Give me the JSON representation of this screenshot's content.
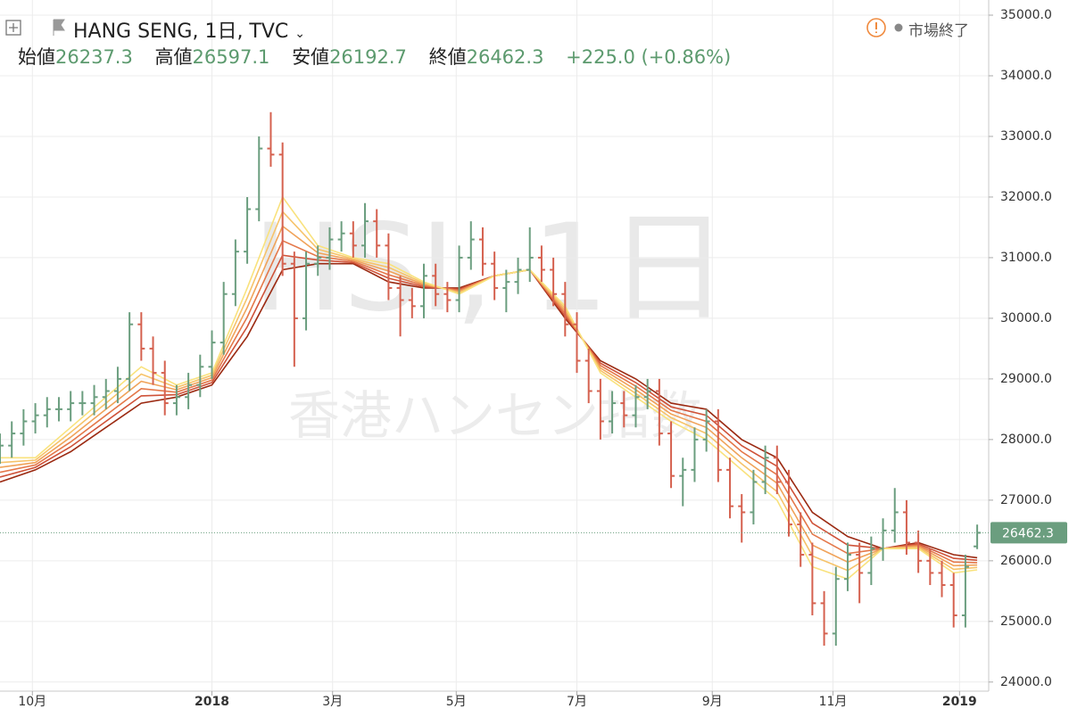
{
  "header": {
    "symbol": "HANG SENG, 1日, TVC",
    "status": "市場終了",
    "legend": [
      {
        "label": "始値",
        "value": 26237.3
      },
      {
        "label": "高値",
        "value": 26597.1
      },
      {
        "label": "安値",
        "value": 26192.7
      },
      {
        "label": "終値",
        "value": 26462.3
      }
    ],
    "change": "+225.0 (+0.86%)"
  },
  "watermark": {
    "line1": "HSI, 1日",
    "line2": "香港ハンセン指数"
  },
  "chart_data": {
    "type": "ohlc",
    "up_color": "#6b9e7f",
    "down_color": "#d5614f",
    "grid": true,
    "xlim": [
      0,
      335
    ],
    "ylim": [
      23850,
      35250
    ],
    "xticks": [
      {
        "value": 11,
        "label": "10月"
      },
      {
        "value": 72,
        "label": "2018"
      },
      {
        "value": 113,
        "label": "3月"
      },
      {
        "value": 155,
        "label": "5月"
      },
      {
        "value": 196,
        "label": "7月"
      },
      {
        "value": 242,
        "label": "9月"
      },
      {
        "value": 283,
        "label": "11月"
      },
      {
        "value": 326,
        "label": "2019"
      }
    ],
    "yticks": [
      {
        "value": 24000,
        "label": "24000.0"
      },
      {
        "value": 25000,
        "label": "25000.0"
      },
      {
        "value": 26000,
        "label": "26000.0"
      },
      {
        "value": 27000,
        "label": "27000.0"
      },
      {
        "value": 28000,
        "label": "28000.0"
      },
      {
        "value": 29000,
        "label": "29000.0"
      },
      {
        "value": 30000,
        "label": "30000.0"
      },
      {
        "value": 31000,
        "label": "31000.0"
      },
      {
        "value": 32000,
        "label": "32000.0"
      },
      {
        "value": 33000,
        "label": "33000.0"
      },
      {
        "value": 34000,
        "label": "34000.0"
      },
      {
        "value": 35000,
        "label": "35000.0"
      }
    ],
    "bars": {
      "x": [
        0,
        4,
        8,
        12,
        16,
        20,
        24,
        28,
        32,
        36,
        40,
        44,
        48,
        52,
        56,
        60,
        64,
        68,
        72,
        76,
        80,
        84,
        88,
        92,
        96,
        100,
        104,
        108,
        112,
        116,
        120,
        124,
        128,
        132,
        136,
        140,
        144,
        148,
        152,
        156,
        160,
        164,
        168,
        172,
        176,
        180,
        184,
        188,
        192,
        196,
        200,
        204,
        208,
        212,
        216,
        220,
        224,
        228,
        232,
        236,
        240,
        244,
        248,
        252,
        256,
        260,
        264,
        268,
        272,
        276,
        280,
        284,
        288,
        292,
        296,
        300,
        304,
        308,
        312,
        316,
        320,
        324,
        328,
        332
      ],
      "open": [
        27800,
        27900,
        28100,
        28300,
        28400,
        28500,
        28500,
        28600,
        28600,
        28700,
        28800,
        29000,
        29900,
        29500,
        29100,
        28600,
        28700,
        28900,
        29200,
        29600,
        30400,
        31100,
        31800,
        32800,
        32700,
        30900,
        30000,
        30900,
        31000,
        31300,
        31400,
        31200,
        31600,
        31200,
        30500,
        30300,
        30200,
        30700,
        30400,
        30300,
        31000,
        31300,
        30900,
        30500,
        30600,
        30800,
        31000,
        30800,
        30400,
        29900,
        29300,
        28800,
        28300,
        28600,
        28400,
        28700,
        28800,
        28100,
        27400,
        27500,
        28000,
        28300,
        27500,
        26900,
        26800,
        27300,
        27700,
        27300,
        26600,
        26100,
        25300,
        24800,
        25700,
        26100,
        25800,
        26200,
        26500,
        26800,
        26300,
        26000,
        25800,
        25600,
        25100,
        26237.3
      ],
      "high": [
        28100,
        28300,
        28500,
        28600,
        28700,
        28700,
        28800,
        28800,
        28900,
        29000,
        29200,
        30100,
        30100,
        29700,
        29300,
        28900,
        29100,
        29400,
        29800,
        30600,
        31300,
        32000,
        33000,
        33400,
        32900,
        31100,
        31100,
        31200,
        31500,
        31600,
        31600,
        31900,
        31800,
        31400,
        30700,
        30500,
        30900,
        30900,
        30600,
        31200,
        31600,
        31500,
        31100,
        30800,
        31000,
        31500,
        31200,
        31000,
        30600,
        30100,
        29500,
        29000,
        28800,
        28800,
        28900,
        29000,
        29000,
        28300,
        27700,
        28200,
        28500,
        28500,
        27700,
        27100,
        27500,
        27900,
        27900,
        27500,
        26800,
        26300,
        25500,
        25900,
        26300,
        26300,
        26400,
        26700,
        27200,
        27000,
        26500,
        26200,
        26000,
        25800,
        26100,
        26597.1
      ],
      "low": [
        27600,
        27700,
        27900,
        28100,
        28200,
        28300,
        28300,
        28400,
        28400,
        28500,
        28600,
        28800,
        29300,
        28900,
        28400,
        28400,
        28500,
        28700,
        29000,
        29400,
        30200,
        30900,
        31600,
        32500,
        30700,
        29200,
        29800,
        30700,
        30800,
        31100,
        31000,
        31000,
        31000,
        30300,
        29700,
        30000,
        30000,
        30200,
        30100,
        30100,
        30800,
        30700,
        30300,
        30100,
        30400,
        30600,
        30600,
        30200,
        29700,
        29100,
        28600,
        28000,
        28100,
        28200,
        28200,
        28500,
        27900,
        27200,
        26900,
        27300,
        27800,
        27300,
        26700,
        26300,
        26600,
        27100,
        27100,
        26400,
        25900,
        25100,
        24600,
        24600,
        25500,
        25300,
        25600,
        26000,
        26300,
        26100,
        25800,
        25600,
        25400,
        24900,
        24900,
        26192.7
      ],
      "close": [
        27900,
        28100,
        28300,
        28400,
        28500,
        28500,
        28600,
        28600,
        28700,
        28800,
        29000,
        29900,
        29500,
        29100,
        28600,
        28700,
        28900,
        29200,
        29600,
        30400,
        31100,
        31800,
        32800,
        32700,
        30900,
        30000,
        30900,
        31000,
        31300,
        31400,
        31200,
        31600,
        31200,
        30500,
        30300,
        30200,
        30700,
        30400,
        30300,
        31000,
        31300,
        30900,
        30500,
        30600,
        30800,
        31000,
        30800,
        30400,
        29900,
        29300,
        28800,
        28300,
        28600,
        28400,
        28700,
        28800,
        28100,
        27400,
        27500,
        28000,
        28300,
        27500,
        26900,
        26800,
        27300,
        27700,
        27300,
        26600,
        26100,
        25300,
        24800,
        25700,
        26100,
        25800,
        26200,
        26500,
        26800,
        26300,
        26000,
        25800,
        25600,
        25100,
        25900,
        26462.3
      ]
    },
    "ribbon": {
      "x": [
        0,
        12,
        24,
        36,
        48,
        60,
        72,
        84,
        96,
        108,
        120,
        132,
        144,
        156,
        168,
        180,
        192,
        204,
        216,
        228,
        240,
        252,
        264,
        276,
        288,
        300,
        312,
        324,
        332
      ],
      "series": [
        {
          "color": "#9b2a12",
          "values": [
            27300,
            27500,
            27800,
            28200,
            28600,
            28700,
            28900,
            29700,
            30800,
            30900,
            30900,
            30600,
            30500,
            30500,
            30700,
            30800,
            30000,
            29300,
            29000,
            28600,
            28500,
            28000,
            27700,
            26800,
            26400,
            26200,
            26300,
            26100,
            26050
          ]
        },
        {
          "color": "#cf5238",
          "values": [
            27380,
            27540,
            27880,
            28300,
            28720,
            28740,
            28940,
            29860,
            31040,
            30960,
            30920,
            30660,
            30520,
            30480,
            30700,
            30800,
            30040,
            29260,
            28940,
            28540,
            28400,
            27900,
            27560,
            26620,
            26260,
            26200,
            26280,
            26040,
            26010
          ]
        },
        {
          "color": "#e4784a",
          "values": [
            27460,
            27580,
            27960,
            28400,
            28840,
            28780,
            28980,
            30020,
            31280,
            31020,
            30940,
            30720,
            30540,
            30460,
            30700,
            30800,
            30080,
            29220,
            28880,
            28480,
            28300,
            27800,
            27420,
            26440,
            26120,
            26200,
            26260,
            25980,
            25970
          ]
        },
        {
          "color": "#f0a35a",
          "values": [
            27540,
            27620,
            28040,
            28500,
            28960,
            28820,
            29020,
            30180,
            31520,
            31080,
            30960,
            30780,
            30560,
            30440,
            30700,
            30800,
            30120,
            29180,
            28820,
            28420,
            28200,
            27700,
            27280,
            26260,
            25980,
            26200,
            26240,
            25920,
            25930
          ]
        },
        {
          "color": "#f6c36a",
          "values": [
            27620,
            27660,
            28120,
            28600,
            29080,
            28860,
            29060,
            30340,
            31760,
            31140,
            30980,
            30840,
            30580,
            30420,
            30700,
            30800,
            30160,
            29140,
            28760,
            28360,
            28100,
            27600,
            27140,
            26080,
            25840,
            26200,
            26220,
            25860,
            25890
          ]
        },
        {
          "color": "#f9e27d",
          "values": [
            27700,
            27700,
            28200,
            28700,
            29200,
            28900,
            29100,
            30500,
            32000,
            31200,
            31000,
            30900,
            30600,
            30400,
            30700,
            30800,
            30200,
            29100,
            28700,
            28300,
            28000,
            27500,
            27000,
            25900,
            25700,
            26200,
            26200,
            25800,
            25850
          ]
        }
      ]
    }
  }
}
